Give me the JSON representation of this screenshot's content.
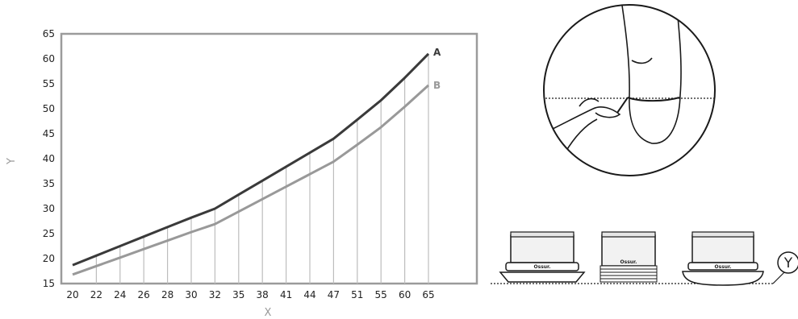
{
  "chart_data": {
    "type": "line",
    "x": [
      20,
      22,
      24,
      26,
      28,
      30,
      32,
      35,
      38,
      41,
      44,
      47,
      51,
      55,
      60,
      65
    ],
    "xlabel": "X",
    "ylabel": "Y",
    "ylim": [
      15,
      65
    ],
    "yticks": [
      15,
      20,
      25,
      30,
      35,
      40,
      45,
      50,
      55,
      60,
      65
    ],
    "grid": "vertical",
    "series": [
      {
        "name": "A",
        "color": "#3a3a3a",
        "values": [
          18.7,
          20.6,
          22.5,
          24.4,
          26.3,
          28.2,
          30.0,
          32.8,
          35.6,
          38.4,
          41.2,
          44.0,
          47.8,
          51.7,
          56.2,
          61.0
        ]
      },
      {
        "name": "B",
        "color": "#999999",
        "values": [
          16.8,
          18.5,
          20.2,
          21.9,
          23.6,
          25.3,
          26.9,
          29.4,
          31.9,
          34.4,
          36.9,
          39.4,
          42.8,
          46.3,
          50.4,
          54.7
        ]
      }
    ]
  },
  "illustration": {
    "brand_label": "Ossur.",
    "callout_label": "Y",
    "liner_count": 3
  }
}
